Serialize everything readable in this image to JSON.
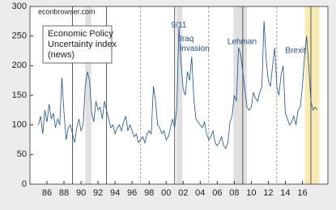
{
  "chart_data": {
    "type": "line",
    "watermark": "econbrowser.com",
    "legend_lines": [
      "Economic Policy",
      "Uncertainty index",
      "(news)"
    ],
    "xlim": [
      1984,
      2019
    ],
    "ylim": [
      0,
      300
    ],
    "yticks": [
      0,
      50,
      100,
      150,
      200,
      250,
      300
    ],
    "xticks": [
      {
        "value": 1986,
        "label": "86"
      },
      {
        "value": 1988,
        "label": "88"
      },
      {
        "value": 1990,
        "label": "90"
      },
      {
        "value": 1992,
        "label": "92"
      },
      {
        "value": 1994,
        "label": "94"
      },
      {
        "value": 1996,
        "label": "96"
      },
      {
        "value": 1998,
        "label": "98"
      },
      {
        "value": 2000,
        "label": "00"
      },
      {
        "value": 2002,
        "label": "02"
      },
      {
        "value": 2004,
        "label": "04"
      },
      {
        "value": 2006,
        "label": "06"
      },
      {
        "value": 2008,
        "label": "08"
      },
      {
        "value": 2010,
        "label": "10"
      },
      {
        "value": 2012,
        "label": "12"
      },
      {
        "value": 2014,
        "label": "14"
      },
      {
        "value": 2016,
        "label": "16"
      }
    ],
    "shaded": [
      {
        "range": [
          1990.5,
          1991.2
        ],
        "color": "#e0e0e0"
      },
      {
        "range": [
          2001.2,
          2001.9
        ],
        "color": "#e0e0e0"
      },
      {
        "range": [
          2007.9,
          2009.5
        ],
        "color": "#e0e0e0"
      },
      {
        "range": [
          2016.3,
          2018.0
        ],
        "color": "#f7eab5"
      }
    ],
    "vlines": [
      {
        "x": 1989,
        "style": "solid"
      },
      {
        "x": 1993,
        "style": "solid"
      },
      {
        "x": 1997,
        "style": "dashed"
      },
      {
        "x": 2001,
        "style": "solid"
      },
      {
        "x": 2005,
        "style": "dashed"
      },
      {
        "x": 2009,
        "style": "solid"
      },
      {
        "x": 2013,
        "style": "dashed"
      },
      {
        "x": 2017,
        "style": "solid"
      }
    ],
    "annotations": [
      {
        "lines": [
          "9/11"
        ],
        "x": 2000.6,
        "y": 268
      },
      {
        "lines": [
          "Iraq",
          "invasion"
        ],
        "x": 2001.6,
        "y": 245
      },
      {
        "lines": [
          "Lehman"
        ],
        "x": 2007.2,
        "y": 240
      },
      {
        "lines": [
          "Brexit"
        ],
        "x": 2014.0,
        "y": 225
      }
    ],
    "x": [
      1985,
      1985.25,
      1985.5,
      1985.75,
      1986,
      1986.25,
      1986.5,
      1986.75,
      1987,
      1987.25,
      1987.5,
      1987.75,
      1988,
      1988.25,
      1988.5,
      1988.75,
      1989,
      1989.25,
      1989.5,
      1989.75,
      1990,
      1990.25,
      1990.5,
      1990.75,
      1991,
      1991.25,
      1991.5,
      1991.75,
      1992,
      1992.25,
      1992.5,
      1992.75,
      1993,
      1993.25,
      1993.5,
      1993.75,
      1994,
      1994.25,
      1994.5,
      1994.75,
      1995,
      1995.25,
      1995.5,
      1995.75,
      1996,
      1996.25,
      1996.5,
      1996.75,
      1997,
      1997.25,
      1997.5,
      1997.75,
      1998,
      1998.25,
      1998.5,
      1998.75,
      1999,
      1999.25,
      1999.5,
      1999.75,
      2000,
      2000.25,
      2000.5,
      2000.75,
      2001,
      2001.25,
      2001.5,
      2001.75,
      2002,
      2002.25,
      2002.5,
      2002.75,
      2003,
      2003.25,
      2003.5,
      2003.75,
      2004,
      2004.25,
      2004.5,
      2004.75,
      2005,
      2005.25,
      2005.5,
      2005.75,
      2006,
      2006.25,
      2006.5,
      2006.75,
      2007,
      2007.25,
      2007.5,
      2007.75,
      2008,
      2008.25,
      2008.5,
      2008.75,
      2009,
      2009.25,
      2009.5,
      2009.75,
      2010,
      2010.25,
      2010.5,
      2010.75,
      2011,
      2011.25,
      2011.5,
      2011.75,
      2012,
      2012.25,
      2012.5,
      2012.75,
      2013,
      2013.25,
      2013.5,
      2013.75,
      2014,
      2014.25,
      2014.5,
      2014.75,
      2015,
      2015.25,
      2015.5,
      2015.75,
      2016,
      2016.25,
      2016.5,
      2016.75,
      2017,
      2017.25,
      2017.5,
      2017.75
    ],
    "series": [
      {
        "color": "#1f4e8c",
        "values": [
          100,
          115,
          85,
          125,
          105,
          135,
          110,
          120,
          95,
          110,
          100,
          180,
          120,
          75,
          95,
          100,
          85,
          70,
          95,
          110,
          90,
          100,
          165,
          190,
          175,
          120,
          105,
          140,
          125,
          130,
          110,
          140,
          125,
          110,
          95,
          100,
          85,
          95,
          100,
          90,
          105,
          115,
          90,
          100,
          90,
          80,
          85,
          70,
          75,
          80,
          70,
          85,
          90,
          85,
          165,
          140,
          100,
          95,
          85,
          90,
          75,
          80,
          95,
          110,
          95,
          130,
          265,
          205,
          160,
          150,
          190,
          175,
          215,
          145,
          110,
          105,
          100,
          95,
          105,
          85,
          75,
          80,
          90,
          70,
          65,
          70,
          80,
          65,
          60,
          70,
          105,
          115,
          150,
          140,
          230,
          220,
          190,
          160,
          130,
          125,
          130,
          155,
          145,
          140,
          155,
          165,
          275,
          210,
          175,
          165,
          200,
          230,
          165,
          150,
          185,
          200,
          120,
          110,
          100,
          105,
          115,
          100,
          125,
          130,
          165,
          215,
          250,
          200,
          140,
          125,
          130,
          125
        ]
      }
    ]
  }
}
